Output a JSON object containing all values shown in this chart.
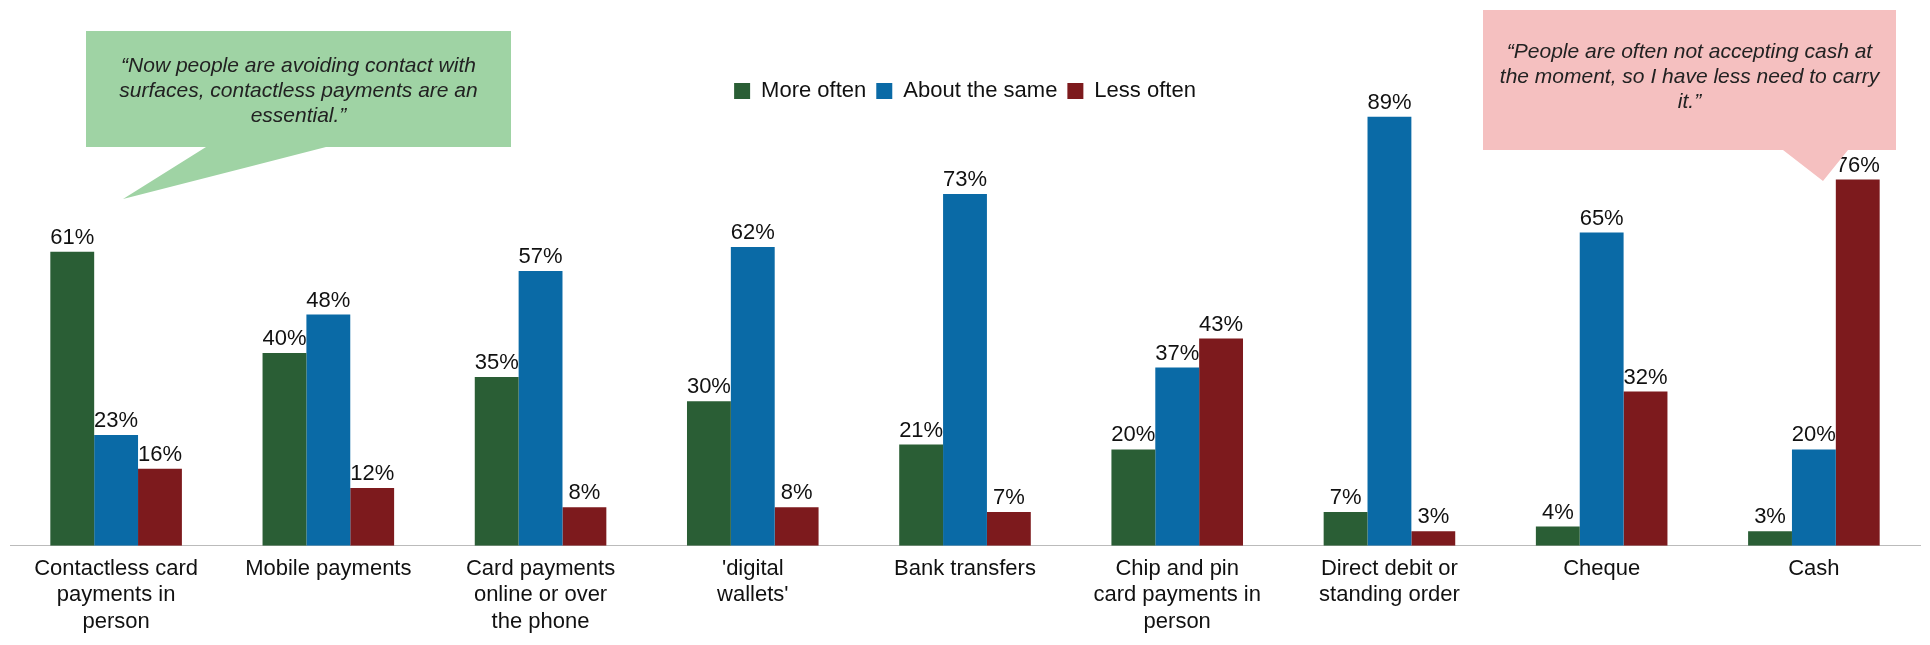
{
  "chart_data": {
    "type": "bar",
    "categories": [
      "Contactless card payments in person",
      "Mobile payments",
      "Card payments online or over the phone",
      "'digital wallets'",
      "Bank transfers",
      "Chip and pin card payments in person",
      "Direct debit or standing order",
      "Cheque",
      "Cash"
    ],
    "series": [
      {
        "name": "More often",
        "color": "#2a5e35",
        "values": [
          61,
          40,
          35,
          30,
          21,
          20,
          7,
          4,
          3
        ],
        "value_labels": [
          "61%",
          "40%",
          "35%",
          "30%",
          "21%",
          "20%",
          "7%",
          "4%",
          "3%"
        ]
      },
      {
        "name": "About the same",
        "color": "#0a6aa6",
        "values": [
          23,
          48,
          57,
          62,
          73,
          37,
          89,
          65,
          20
        ],
        "value_labels": [
          "23%",
          "48%",
          "57%",
          "62%",
          "73%",
          "37%",
          "89%",
          "65%",
          "20%"
        ]
      },
      {
        "name": "Less often",
        "color": "#7d1a1d",
        "values": [
          16,
          12,
          8,
          8,
          7,
          43,
          3,
          32,
          76
        ],
        "value_labels": [
          "16%",
          "12%",
          "8%",
          "8%",
          "7%",
          "43%",
          "3%",
          "32%",
          "76%"
        ]
      }
    ],
    "annotations": [
      "“Now people are avoiding contact with surfaces, contactless payments are an essential.”",
      "“People are often not accepting cash at the moment, so I have less need to carry it.”"
    ],
    "legend": "top",
    "grid": false
  }
}
